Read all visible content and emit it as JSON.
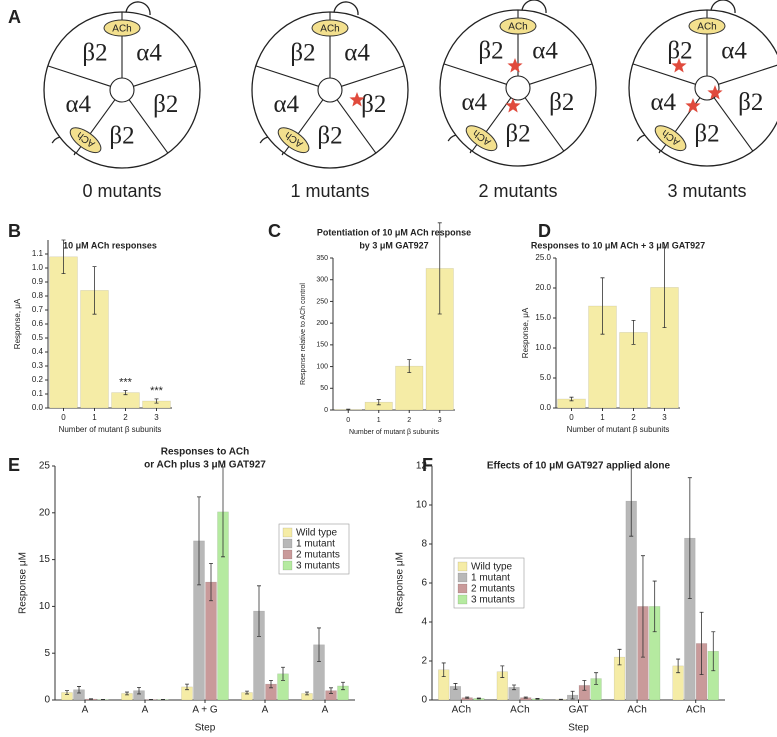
{
  "panel_a": {
    "panel_label": "A",
    "subunits": [
      "β2",
      "α4",
      "β2",
      "β2",
      "α4"
    ],
    "ligand": "ACh",
    "captions": [
      "0 mutants",
      "1 mutants",
      "2 mutants",
      "3 mutants"
    ]
  },
  "chart_data": [
    {
      "type": "bar",
      "panel_label": "B",
      "title": [
        "10 μM ACh responses"
      ],
      "y_label": "Response, μA",
      "x_label": "Number of mutant β subunits",
      "categories": [
        "0",
        "1",
        "2",
        "3"
      ],
      "values": [
        1.08,
        0.84,
        0.11,
        0.05
      ],
      "errors": [
        0.12,
        0.17,
        0.015,
        0.015
      ],
      "color": "#f5eca6",
      "ylim": [
        0,
        1.2
      ],
      "yticks": [
        {
          "value": 0,
          "label": "0.0"
        },
        0.1,
        0.2,
        0.3,
        0.4,
        0.5,
        0.6,
        0.7,
        0.8,
        0.9,
        {
          "value": 1,
          "label": "1.0"
        },
        1.1
      ],
      "annotations": [
        {
          "x": "2",
          "text": "***"
        },
        {
          "x": "3",
          "text": "***"
        }
      ]
    },
    {
      "type": "bar",
      "panel_label": "C",
      "title": [
        "Potentiation of 10 μM ACh response",
        "by 3  μM GAT927"
      ],
      "y_label": "Response relative to ACh control",
      "x_label": "Number of mutant β subunits",
      "categories": [
        "0",
        "1",
        "2",
        "3"
      ],
      "values": [
        1,
        18,
        101,
        326
      ],
      "errors": [
        1,
        6,
        15,
        105
      ],
      "color": "#f5eca6",
      "ylim": [
        0,
        350
      ],
      "yticks": [
        0,
        50,
        100,
        150,
        200,
        250,
        300,
        350
      ]
    },
    {
      "type": "bar",
      "panel_label": "D",
      "title": [
        "Responses to 10 μM ACh + 3 μM GAT927"
      ],
      "y_label": "Response, μA",
      "x_label": "Number of mutant β subunits",
      "categories": [
        "0",
        "1",
        "2",
        "3"
      ],
      "values": [
        1.5,
        17,
        12.6,
        20.1
      ],
      "errors": [
        0.3,
        4.7,
        2,
        6.7
      ],
      "color": "#f5eca6",
      "ylim": [
        0,
        25
      ],
      "yticks": [
        {
          "value": 0,
          "label": "0.0"
        },
        {
          "value": 5,
          "label": "5.0"
        },
        {
          "value": 10,
          "label": "10.0"
        },
        {
          "value": 15,
          "label": "15.0"
        },
        {
          "value": 20,
          "label": "20.0"
        },
        {
          "value": 25,
          "label": "25.0"
        }
      ]
    },
    {
      "type": "bar",
      "panel_label": "E",
      "title": [
        "Responses to ACh",
        "or ACh plus 3 μM GAT927"
      ],
      "y_label": "Response μM",
      "x_label": "Step",
      "categories": [
        "A",
        "A",
        "A + G",
        "A",
        "A"
      ],
      "legend": "upper right",
      "series": [
        {
          "name": "Wild type",
          "color": "#f5eca6",
          "values": [
            0.8,
            0.7,
            1.4,
            0.8,
            0.7
          ],
          "errors": [
            0.2,
            0.15,
            0.3,
            0.15,
            0.15
          ]
        },
        {
          "name": "1 mutant",
          "color": "#b8b8b8",
          "values": [
            1.1,
            1.0,
            17,
            9.5,
            5.9
          ],
          "errors": [
            0.35,
            0.35,
            4.7,
            2.7,
            1.8
          ]
        },
        {
          "name": "2 mutants",
          "color": "#c99a9a",
          "values": [
            0.1,
            0.05,
            12.6,
            1.7,
            1.0
          ],
          "errors": [
            0.03,
            0.02,
            2,
            0.4,
            0.3
          ]
        },
        {
          "name": "3 mutants",
          "color": "#b5eaa0",
          "values": [
            0.05,
            0.05,
            20.1,
            2.8,
            1.5
          ],
          "errors": [
            0.02,
            0.02,
            4.8,
            0.7,
            0.4
          ]
        }
      ],
      "ylim": [
        0,
        25
      ],
      "yticks": [
        0,
        5,
        10,
        15,
        20,
        25
      ]
    },
    {
      "type": "bar",
      "panel_label": "F",
      "title": [
        "Effects of 10 μM GAT927 applied alone"
      ],
      "y_label": "Response μM",
      "x_label": "Step",
      "categories": [
        "ACh",
        "ACh",
        "GAT",
        "ACh",
        "ACh"
      ],
      "legend": "center left",
      "series": [
        {
          "name": "Wild type",
          "color": "#f5eca6",
          "values": [
            1.55,
            1.45,
            0.02,
            2.2,
            1.75
          ],
          "errors": [
            0.35,
            0.3,
            0.02,
            0.4,
            0.35
          ]
        },
        {
          "name": "1 mutant",
          "color": "#b8b8b8",
          "values": [
            0.7,
            0.65,
            0.25,
            10.2,
            8.3
          ],
          "errors": [
            0.15,
            0.12,
            0.2,
            1.8,
            3.1
          ]
        },
        {
          "name": "2 mutants",
          "color": "#c99a9a",
          "values": [
            0.12,
            0.12,
            0.75,
            4.8,
            2.9
          ],
          "errors": [
            0.03,
            0.03,
            0.25,
            2.6,
            1.6
          ]
        },
        {
          "name": "3 mutants",
          "color": "#b5eaa0",
          "values": [
            0.08,
            0.06,
            1.1,
            4.8,
            2.5
          ],
          "errors": [
            0.02,
            0.02,
            0.3,
            1.3,
            1.0
          ]
        }
      ],
      "ylim": [
        0,
        12
      ],
      "yticks": [
        0,
        2,
        4,
        6,
        8,
        10,
        12
      ]
    }
  ]
}
